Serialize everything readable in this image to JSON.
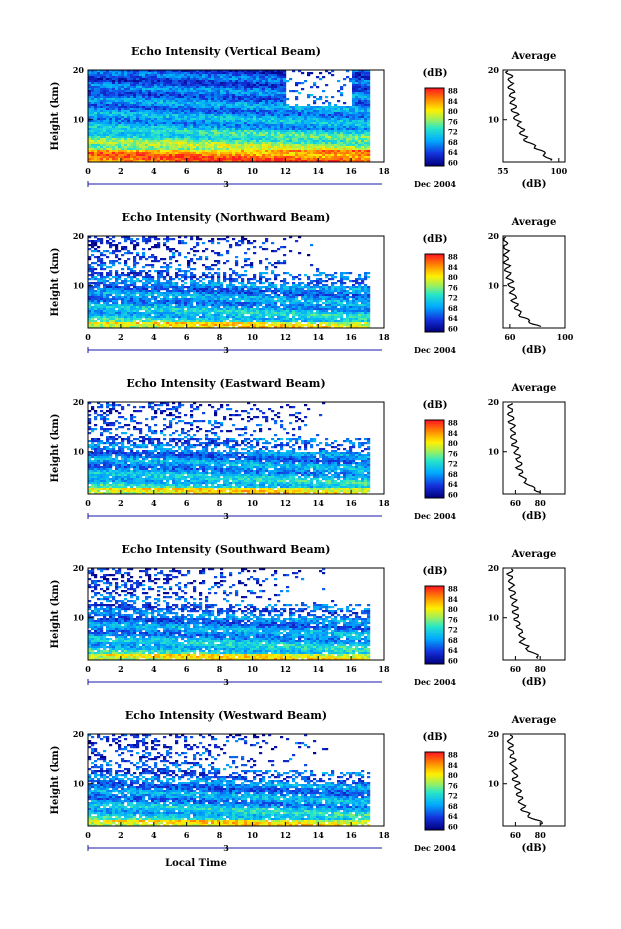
{
  "chart_data": [
    {
      "type": "heatmap",
      "title": "Echo Intensity (Vertical Beam)",
      "ylabel": "Height (km)",
      "x_ticks": [
        "0",
        "2",
        "4",
        "6",
        "8",
        "10",
        "12",
        "14",
        "16",
        "18"
      ],
      "y_ticks": [
        "20",
        "10"
      ],
      "date_label": "Dec 2004",
      "day_marker": "3",
      "xlim": [
        0,
        18
      ],
      "ylim": [
        1.5,
        20
      ],
      "colorbar": {
        "unit": "(dB)",
        "ticks": [
          "88",
          "84",
          "80",
          "76",
          "72",
          "68",
          "64",
          "60"
        ],
        "range": [
          60,
          90
        ]
      },
      "average": {
        "title": "Average",
        "xlabel": "(dB)",
        "x_ticks": [
          "55",
          "100"
        ],
        "y_ticks": [
          "20",
          "10"
        ],
        "xlim": [
          55,
          105
        ],
        "profile": {
          "height": [
            2,
            3,
            4,
            5,
            6,
            7,
            8,
            9,
            10,
            11,
            12,
            13,
            14,
            15,
            16,
            17,
            18,
            19,
            20
          ],
          "value": [
            92,
            89,
            85,
            78,
            73,
            71,
            70,
            68,
            66,
            65,
            64,
            63,
            63,
            62,
            62,
            61,
            61,
            60,
            60
          ]
        }
      }
    },
    {
      "type": "heatmap",
      "title": "Echo Intensity (Northward Beam)",
      "ylabel": "Height (km)",
      "x_ticks": [
        "0",
        "2",
        "4",
        "6",
        "8",
        "10",
        "12",
        "14",
        "16",
        "18"
      ],
      "y_ticks": [
        "20",
        "10"
      ],
      "date_label": "Dec 2004",
      "day_marker": "3",
      "xlim": [
        0,
        18
      ],
      "ylim": [
        1.5,
        20
      ],
      "colorbar": {
        "unit": "(dB)",
        "ticks": [
          "88",
          "84",
          "80",
          "76",
          "72",
          "68",
          "64",
          "60"
        ],
        "range": [
          60,
          90
        ]
      },
      "average": {
        "title": "Average",
        "xlabel": "(dB)",
        "x_ticks": [
          "60",
          "100"
        ],
        "y_ticks": [
          "20",
          "10"
        ],
        "xlim": [
          55,
          100
        ],
        "profile": {
          "height": [
            2,
            3,
            4,
            5,
            6,
            7,
            8,
            9,
            10,
            11,
            12,
            13,
            14,
            15,
            16,
            17,
            18,
            19,
            20
          ],
          "value": [
            80,
            73,
            68,
            66,
            64,
            63,
            63,
            62,
            61,
            60,
            59,
            58,
            58,
            57,
            57,
            57,
            56,
            56,
            56
          ]
        }
      }
    },
    {
      "type": "heatmap",
      "title": "Echo Intensity (Eastward Beam)",
      "ylabel": "Height (km)",
      "x_ticks": [
        "0",
        "2",
        "4",
        "6",
        "8",
        "10",
        "12",
        "14",
        "16",
        "18"
      ],
      "y_ticks": [
        "20",
        "10"
      ],
      "date_label": "Dec 2004",
      "day_marker": "3",
      "xlim": [
        0,
        18
      ],
      "ylim": [
        1.5,
        20
      ],
      "colorbar": {
        "unit": "(dB)",
        "ticks": [
          "88",
          "84",
          "80",
          "76",
          "72",
          "68",
          "64",
          "60"
        ],
        "range": [
          60,
          90
        ]
      },
      "average": {
        "title": "Average",
        "xlabel": "(dB)",
        "x_ticks": [
          "60",
          "80"
        ],
        "y_ticks": [
          "20",
          "10"
        ],
        "xlim": [
          50,
          100
        ],
        "profile": {
          "height": [
            2,
            3,
            4,
            5,
            6,
            7,
            8,
            9,
            10,
            11,
            12,
            13,
            14,
            15,
            16,
            17,
            18,
            19,
            20
          ],
          "value": [
            80,
            72,
            68,
            66,
            64,
            63,
            63,
            62,
            61,
            60,
            59,
            58,
            58,
            57,
            57,
            57,
            56,
            56,
            56
          ]
        }
      }
    },
    {
      "type": "heatmap",
      "title": "Echo Intensity (Southward Beam)",
      "ylabel": "Height (km)",
      "x_ticks": [
        "0",
        "2",
        "4",
        "6",
        "8",
        "10",
        "12",
        "14",
        "16",
        "18"
      ],
      "y_ticks": [
        "20",
        "10"
      ],
      "date_label": "Dec 2004",
      "day_marker": "3",
      "xlim": [
        0,
        18
      ],
      "ylim": [
        1.5,
        20
      ],
      "colorbar": {
        "unit": "(dB)",
        "ticks": [
          "88",
          "84",
          "80",
          "76",
          "72",
          "68",
          "64",
          "60"
        ],
        "range": [
          60,
          90
        ]
      },
      "average": {
        "title": "Average",
        "xlabel": "(dB)",
        "x_ticks": [
          "60",
          "80"
        ],
        "y_ticks": [
          "20",
          "10"
        ],
        "xlim": [
          50,
          100
        ],
        "profile": {
          "height": [
            2,
            3,
            4,
            5,
            6,
            7,
            8,
            9,
            10,
            11,
            12,
            13,
            14,
            15,
            16,
            17,
            18,
            19,
            20
          ],
          "value": [
            80,
            73,
            69,
            66,
            65,
            64,
            63,
            62,
            61,
            60,
            60,
            59,
            58,
            58,
            57,
            57,
            56,
            56,
            56
          ]
        }
      }
    },
    {
      "type": "heatmap",
      "title": "Echo Intensity (Westward Beam)",
      "ylabel": "Height (km)",
      "xlabel": "Local Time",
      "x_ticks": [
        "0",
        "2",
        "4",
        "6",
        "8",
        "10",
        "12",
        "14",
        "16",
        "18"
      ],
      "y_ticks": [
        "20",
        "10"
      ],
      "date_label": "Dec 2004",
      "day_marker": "3",
      "xlim": [
        0,
        18
      ],
      "ylim": [
        1.5,
        20
      ],
      "colorbar": {
        "unit": "(dB)",
        "ticks": [
          "88",
          "84",
          "80",
          "76",
          "72",
          "68",
          "64",
          "60"
        ],
        "range": [
          60,
          90
        ]
      },
      "average": {
        "title": "Average",
        "xlabel": "(dB)",
        "x_ticks": [
          "60",
          "80"
        ],
        "y_ticks": [
          "20",
          "10"
        ],
        "xlim": [
          50,
          100
        ],
        "profile": {
          "height": [
            2,
            3,
            4,
            5,
            6,
            7,
            8,
            9,
            10,
            11,
            12,
            13,
            14,
            15,
            16,
            17,
            18,
            19,
            20
          ],
          "value": [
            82,
            74,
            69,
            66,
            65,
            64,
            63,
            62,
            61,
            60,
            60,
            59,
            58,
            58,
            57,
            57,
            56,
            56,
            56
          ]
        }
      }
    }
  ]
}
